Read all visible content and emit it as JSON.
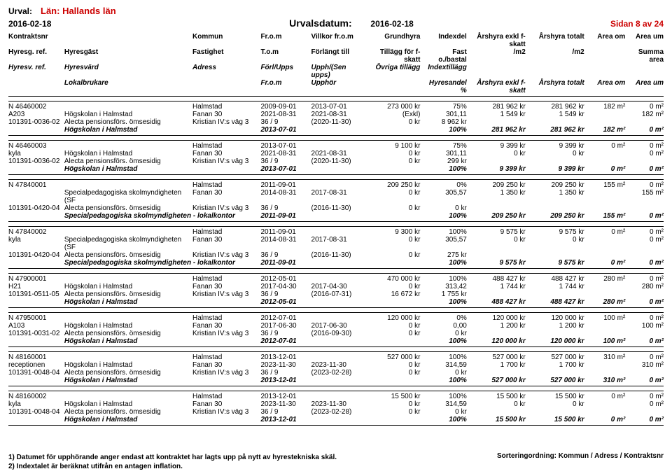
{
  "meta": {
    "urval_label": "Urval:",
    "lan": "Län: Hallands län",
    "date": "2016-02-18",
    "urvalsdatum_label": "Urvalsdatum:",
    "urvalsdatum": "2016-02-18",
    "sidan": "Sidan 8 av 24"
  },
  "header": {
    "r1": {
      "c1": "Kontraktsnr",
      "c2": "",
      "c3": "Kommun",
      "c4": "Fr.o.m",
      "c5": "Villkor fr.o.m",
      "c6": "Grundhyra",
      "c7": "Indexdel",
      "c8": "Årshyra exkl f-skatt",
      "c9": "Årshyra totalt",
      "c10": "Area om",
      "c11": "Area um"
    },
    "r2": {
      "c1": "Hyresg. ref.",
      "c2": "Hyresgäst",
      "c3": "Fastighet",
      "c4": "T.o.m",
      "c5": "Förlängt till",
      "c6": "Tillägg för f-skatt",
      "c7": "Fast o./bastal",
      "c8": "/m2",
      "c9": "/m2",
      "c10": "",
      "c11": "Summa area"
    },
    "r3": {
      "c1": "Hyresv. ref.",
      "c2": "Hyresvärd",
      "c3": "Adress",
      "c4": "Förl/Upps",
      "c5": "Upph/(Sen upps)",
      "c6": "Övriga tillägg",
      "c7": "Indextillägg",
      "c8": "",
      "c9": "",
      "c10": "",
      "c11": ""
    },
    "r4": {
      "c1": "",
      "c2": "Lokalbrukare",
      "c3": "",
      "c4": "Fr.o.m",
      "c5": "Upphör",
      "c6": "",
      "c7": "Hyresandel %",
      "c8": "Årshyra exkl f-skatt",
      "c9": "Årshyra totalt",
      "c10": "Area om",
      "c11": "Area um"
    }
  },
  "blocks": [
    {
      "rows": [
        {
          "c1": "N 46460002",
          "c2": "",
          "c3": "Halmstad",
          "c4": "2009-09-01",
          "c5": "2013-07-01",
          "c6": "273 000 kr",
          "c7": "75%",
          "c8": "281 962 kr",
          "c9": "281 962 kr",
          "c10": "182 m²",
          "c11": "0 m²"
        },
        {
          "c1": "A203",
          "c2": "Högskolan i Halmstad",
          "c3": "Fanan 30",
          "c4": "2021-08-31",
          "c5": "2021-08-31",
          "c6": "(Exkl)",
          "c7": "301,11",
          "c8": "1 549 kr",
          "c9": "1 549 kr",
          "c10": "",
          "c11": "182 m²"
        },
        {
          "c1": "101391-0036-02",
          "c2": "Alecta pensionsförs. ömsesidig",
          "c3": "Kristian IV:s väg 3",
          "c4": "36 / 9",
          "c5": "(2020-11-30)",
          "c6": "0 kr",
          "c7": "8 962 kr",
          "c8": "",
          "c9": "",
          "c10": "",
          "c11": ""
        }
      ],
      "summary": {
        "c2": "Högskolan i Halmstad",
        "c4": "2013-07-01",
        "c7": "100%",
        "c8": "281 962 kr",
        "c9": "281 962 kr",
        "c10": "182 m²",
        "c11": "0 m²"
      }
    },
    {
      "rows": [
        {
          "c1": "N 46460003",
          "c2": "",
          "c3": "Halmstad",
          "c4": "2013-07-01",
          "c5": "",
          "c6": "9 100 kr",
          "c7": "75%",
          "c8": "9 399 kr",
          "c9": "9 399 kr",
          "c10": "0 m²",
          "c11": "0 m²"
        },
        {
          "c1": "kyla",
          "c2": "Högskolan i Halmstad",
          "c3": "Fanan 30",
          "c4": "2021-08-31",
          "c5": "2021-08-31",
          "c6": "0 kr",
          "c7": "301,11",
          "c8": "0 kr",
          "c9": "0 kr",
          "c10": "",
          "c11": "0 m²"
        },
        {
          "c1": "101391-0036-02",
          "c2": "Alecta pensionsförs. ömsesidig",
          "c3": "Kristian IV:s väg 3",
          "c4": "36 / 9",
          "c5": "(2020-11-30)",
          "c6": "0 kr",
          "c7": "299 kr",
          "c8": "",
          "c9": "",
          "c10": "",
          "c11": ""
        }
      ],
      "summary": {
        "c2": "Högskolan i Halmstad",
        "c4": "2013-07-01",
        "c7": "100%",
        "c8": "9 399 kr",
        "c9": "9 399 kr",
        "c10": "0 m²",
        "c11": "0 m²"
      }
    },
    {
      "rows": [
        {
          "c1": "N 47840001",
          "c2": "",
          "c3": "Halmstad",
          "c4": "2011-09-01",
          "c5": "",
          "c6": "209 250 kr",
          "c7": "0%",
          "c8": "209 250 kr",
          "c9": "209 250 kr",
          "c10": "155 m²",
          "c11": "0 m²"
        },
        {
          "c1": "",
          "c2": "Specialpedagogiska skolmyndigheten (SF",
          "c3": "Fanan 30",
          "c4": "2014-08-31",
          "c5": "2017-08-31",
          "c6": "0 kr",
          "c7": "305,57",
          "c8": "1 350 kr",
          "c9": "1 350 kr",
          "c10": "",
          "c11": "155 m²"
        },
        {
          "c1": "101391-0420-04",
          "c2": "Alecta pensionsförs. ömsesidig",
          "c3": "Kristian IV:s väg 3",
          "c4": "36 / 9",
          "c5": "(2016-11-30)",
          "c6": "0 kr",
          "c7": "0 kr",
          "c8": "",
          "c9": "",
          "c10": "",
          "c11": ""
        }
      ],
      "summary": {
        "c2": "Specialpedagogiska skolmyndigheten - lokalkontor",
        "c4": "2011-09-01",
        "c7": "100%",
        "c8": "209 250 kr",
        "c9": "209 250 kr",
        "c10": "155 m²",
        "c11": "0 m²"
      }
    },
    {
      "rows": [
        {
          "c1": "N 47840002",
          "c2": "",
          "c3": "Halmstad",
          "c4": "2011-09-01",
          "c5": "",
          "c6": "9 300 kr",
          "c7": "100%",
          "c8": "9 575 kr",
          "c9": "9 575 kr",
          "c10": "0 m²",
          "c11": "0 m²"
        },
        {
          "c1": "kyla",
          "c2": "Specialpedagogiska skolmyndigheten (SF",
          "c3": "Fanan 30",
          "c4": "2014-08-31",
          "c5": "2017-08-31",
          "c6": "0 kr",
          "c7": "305,57",
          "c8": "0 kr",
          "c9": "0 kr",
          "c10": "",
          "c11": "0 m²"
        },
        {
          "c1": "101391-0420-04",
          "c2": "Alecta pensionsförs. ömsesidig",
          "c3": "Kristian IV:s väg 3",
          "c4": "36 / 9",
          "c5": "(2016-11-30)",
          "c6": "0 kr",
          "c7": "275 kr",
          "c8": "",
          "c9": "",
          "c10": "",
          "c11": ""
        }
      ],
      "summary": {
        "c2": "Specialpedagogiska skolmyndigheten - lokalkontor",
        "c4": "2011-09-01",
        "c7": "100%",
        "c8": "9 575 kr",
        "c9": "9 575 kr",
        "c10": "0 m²",
        "c11": "0 m²"
      }
    },
    {
      "rows": [
        {
          "c1": "N 47900001",
          "c2": "",
          "c3": "Halmstad",
          "c4": "2012-05-01",
          "c5": "",
          "c6": "470 000 kr",
          "c7": "100%",
          "c8": "488 427 kr",
          "c9": "488 427 kr",
          "c10": "280 m²",
          "c11": "0 m²"
        },
        {
          "c1": "H21",
          "c2": "Högskolan i Halmstad",
          "c3": "Fanan 30",
          "c4": "2017-04-30",
          "c5": "2017-04-30",
          "c6": "0 kr",
          "c7": "313,42",
          "c8": "1 744 kr",
          "c9": "1 744 kr",
          "c10": "",
          "c11": "280 m²"
        },
        {
          "c1": "101391-0511-05",
          "c2": "Alecta pensionsförs. ömsesidig",
          "c3": "Kristian IV:s väg 3",
          "c4": "36 / 9",
          "c5": "(2016-07-31)",
          "c6": "16 672 kr",
          "c7": "1 755 kr",
          "c8": "",
          "c9": "",
          "c10": "",
          "c11": ""
        }
      ],
      "summary": {
        "c2": "Högskolan i Halmstad",
        "c4": "2012-05-01",
        "c7": "100%",
        "c8": "488 427 kr",
        "c9": "488 427 kr",
        "c10": "280 m²",
        "c11": "0 m²"
      }
    },
    {
      "rows": [
        {
          "c1": "N 47950001",
          "c2": "",
          "c3": "Halmstad",
          "c4": "2012-07-01",
          "c5": "",
          "c6": "120 000 kr",
          "c7": "0%",
          "c8": "120 000 kr",
          "c9": "120 000 kr",
          "c10": "100 m²",
          "c11": "0 m²"
        },
        {
          "c1": "A103",
          "c2": "Högskolan i Halmstad",
          "c3": "Fanan 30",
          "c4": "2017-06-30",
          "c5": "2017-06-30",
          "c6": "0 kr",
          "c7": "0,00",
          "c8": "1 200 kr",
          "c9": "1 200 kr",
          "c10": "",
          "c11": "100 m²"
        },
        {
          "c1": "101391-0031-02",
          "c2": "Alecta pensionsförs. ömsesidig",
          "c3": "Kristian IV:s väg 3",
          "c4": "36 / 9",
          "c5": "(2016-09-30)",
          "c6": "0 kr",
          "c7": "0 kr",
          "c8": "",
          "c9": "",
          "c10": "",
          "c11": ""
        }
      ],
      "summary": {
        "c2": "Högskolan i Halmstad",
        "c4": "2012-07-01",
        "c7": "100%",
        "c8": "120 000 kr",
        "c9": "120 000 kr",
        "c10": "100 m²",
        "c11": "0 m²"
      }
    },
    {
      "rows": [
        {
          "c1": "N 48160001",
          "c2": "",
          "c3": "Halmstad",
          "c4": "2013-12-01",
          "c5": "",
          "c6": "527 000 kr",
          "c7": "100%",
          "c8": "527 000 kr",
          "c9": "527 000 kr",
          "c10": "310 m²",
          "c11": "0 m²"
        },
        {
          "c1": "receptionen",
          "c2": "Högskolan i Halmstad",
          "c3": "Fanan 30",
          "c4": "2023-11-30",
          "c5": "2023-11-30",
          "c6": "0 kr",
          "c7": "314,59",
          "c8": "1 700 kr",
          "c9": "1 700 kr",
          "c10": "",
          "c11": "310 m²"
        },
        {
          "c1": "101391-0048-04",
          "c2": "Alecta pensionsförs. ömsesidig",
          "c3": "Kristian IV:s väg 3",
          "c4": "36 / 9",
          "c5": "(2023-02-28)",
          "c6": "0 kr",
          "c7": "0 kr",
          "c8": "",
          "c9": "",
          "c10": "",
          "c11": ""
        }
      ],
      "summary": {
        "c2": "Högskolan i Halmstad",
        "c4": "2013-12-01",
        "c7": "100%",
        "c8": "527 000 kr",
        "c9": "527 000 kr",
        "c10": "310 m²",
        "c11": "0 m²"
      }
    },
    {
      "rows": [
        {
          "c1": "N 48160002",
          "c2": "",
          "c3": "Halmstad",
          "c4": "2013-12-01",
          "c5": "",
          "c6": "15 500 kr",
          "c7": "100%",
          "c8": "15 500 kr",
          "c9": "15 500 kr",
          "c10": "0 m²",
          "c11": "0 m²"
        },
        {
          "c1": "kyla",
          "c2": "Högskolan i Halmstad",
          "c3": "Fanan 30",
          "c4": "2023-11-30",
          "c5": "2023-11-30",
          "c6": "0 kr",
          "c7": "314,59",
          "c8": "0 kr",
          "c9": "0 kr",
          "c10": "",
          "c11": "0 m²"
        },
        {
          "c1": "101391-0048-04",
          "c2": "Alecta pensionsförs. ömsesidig",
          "c3": "Kristian IV:s väg 3",
          "c4": "36 / 9",
          "c5": "(2023-02-28)",
          "c6": "0 kr",
          "c7": "0 kr",
          "c8": "",
          "c9": "",
          "c10": "",
          "c11": ""
        }
      ],
      "summary": {
        "c2": "Högskolan i Halmstad",
        "c4": "2013-12-01",
        "c7": "100%",
        "c8": "15 500 kr",
        "c9": "15 500 kr",
        "c10": "0 m²",
        "c11": "0 m²"
      }
    }
  ],
  "footer": {
    "note1": "1) Datumet för upphörande anger endast att kontraktet har lagts upp på nytt av hyrestekniska skäl.",
    "note2": "2) Indextalet är beräknat utifrån en antagen inflation.",
    "sort": "Sorteringordning: Kommun / Adress / Kontraktsnr"
  }
}
